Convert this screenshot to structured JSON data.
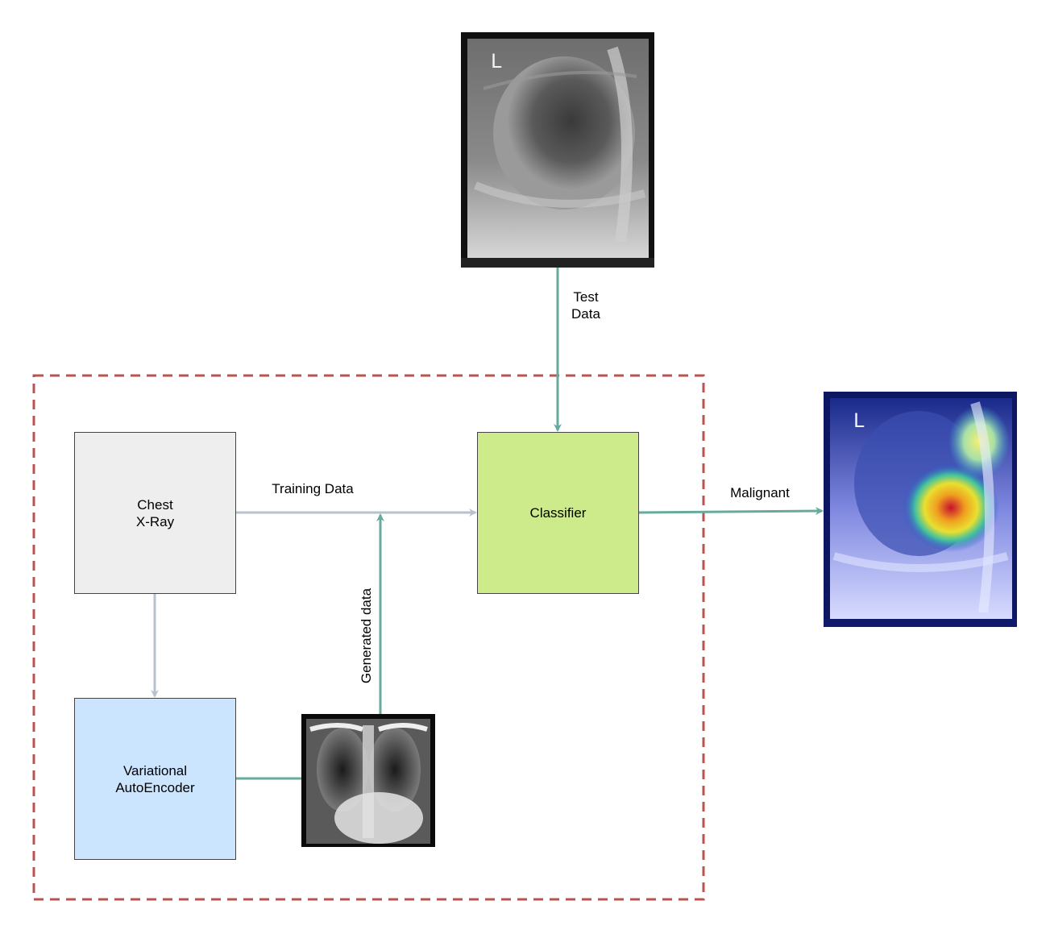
{
  "diagram": {
    "test_data_label": "Test\nData",
    "training_data_label": "Training Data",
    "generated_data_label": "Generated data",
    "malignant_label": "Malignant",
    "chest_xray_box": "Chest\nX-Ray",
    "classifier_box": "Classifier",
    "vae_box": "Variational\nAutoEncoder",
    "xray_marker_top": "L",
    "xray_marker_heatmap": "L",
    "colors": {
      "teal_arrow": "#67ab9f",
      "grey_arrow": "#b8c2cf",
      "dashed_border": "#b85450",
      "chest_box_fill": "#eeeeee",
      "classifier_fill": "#cdeb8b",
      "vae_fill": "#cce5ff"
    },
    "images": {
      "test_xray": "lateral-chest-xray-image",
      "generated_xray": "frontal-chest-xray-image",
      "heatmap_xray": "lateral-chest-xray-heatmap-image"
    }
  }
}
